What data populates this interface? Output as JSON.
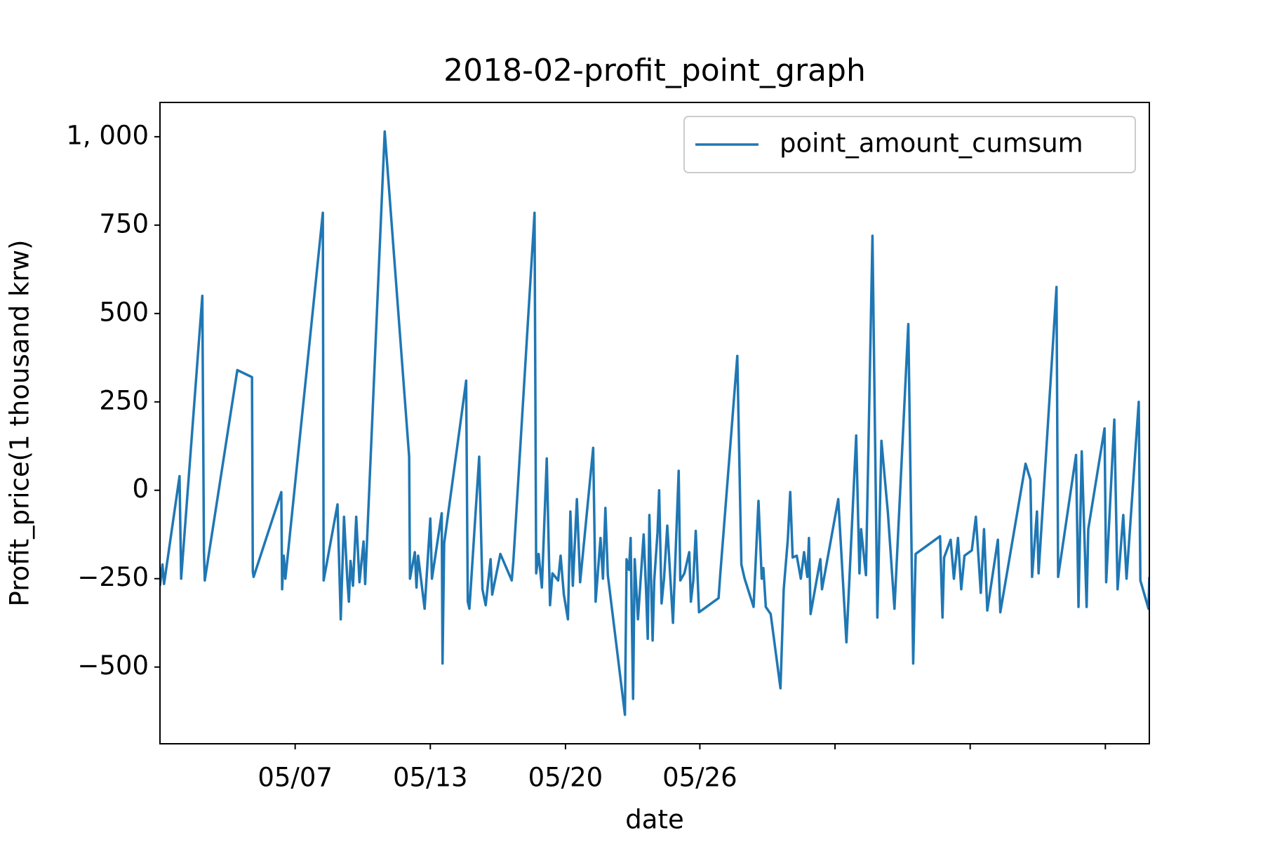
{
  "chart_data": {
    "type": "line",
    "title": "2018-02-profit_point_graph",
    "x_label": "date",
    "y_label": "Profit_price(1 thousand krw)",
    "x": [
      0,
      3,
      5,
      24,
      26,
      52,
      54,
      55,
      95,
      113,
      114,
      115,
      149,
      150,
      152,
      154,
      200,
      201,
      218,
      222,
      226,
      230,
      232,
      234,
      237,
      241,
      245,
      250,
      252,
      276,
      306,
      307,
      313,
      315,
      317,
      325,
      332,
      334,
      346,
      347,
      349,
      376,
      378,
      380,
      392,
      396,
      400,
      406,
      408,
      418,
      432,
      434,
      460,
      462,
      465,
      469,
      475,
      479,
      482,
      489,
      492,
      496,
      501,
      504,
      507,
      512,
      516,
      532,
      535,
      541,
      544,
      547,
      550,
      571,
      573,
      576,
      578,
      581,
      583,
      587,
      594,
      597,
      599,
      601,
      605,
      607,
      611,
      613,
      616,
      619,
      623,
      630,
      637,
      639,
      644,
      650,
      652,
      655,
      658,
      662,
      686,
      688,
      709,
      714,
      718,
      729,
      735,
      739,
      741,
      744,
      750,
      762,
      766,
      771,
      774,
      777,
      782,
      787,
      791,
      795,
      797,
      799,
      811,
      813,
      833,
      843,
      855,
      859,
      861,
      867,
      875,
      881,
      886,
      894,
      902,
      919,
      925,
      928,
      958,
      961,
      963,
      971,
      975,
      980,
      984,
      988,
      997,
      1002,
      1008,
      1012,
      1016,
      1029,
      1032,
      1063,
      1069,
      1071,
      1077,
      1079,
      1101,
      1103,
      1125,
      1128,
      1132,
      1138,
      1140,
      1160,
      1162,
      1172,
      1176,
      1183,
      1187,
      1202,
      1204,
      1214,
      1215
    ],
    "series": [
      {
        "name": "point_amount_cumsum",
        "color": "#1f77b4",
        "values": [
          -270,
          -210,
          -265,
          40,
          -250,
          550,
          -175,
          -255,
          340,
          320,
          -230,
          -245,
          -5,
          -280,
          -185,
          -250,
          785,
          -255,
          -40,
          -365,
          -75,
          -250,
          -315,
          -200,
          -270,
          -75,
          -260,
          -145,
          -265,
          1015,
          95,
          -250,
          -175,
          -275,
          -185,
          -335,
          -80,
          -250,
          -65,
          -490,
          -150,
          310,
          -315,
          -335,
          95,
          -280,
          -325,
          -195,
          -295,
          -180,
          -255,
          -200,
          785,
          -235,
          -180,
          -275,
          90,
          -325,
          -235,
          -255,
          -185,
          -295,
          -365,
          -60,
          -270,
          -25,
          -260,
          120,
          -315,
          -135,
          -250,
          -50,
          -240,
          -635,
          -195,
          -225,
          -135,
          -590,
          -195,
          -365,
          -125,
          -285,
          -420,
          -70,
          -425,
          -255,
          -120,
          0,
          -320,
          -250,
          -100,
          -375,
          55,
          -255,
          -235,
          -175,
          -315,
          -255,
          -115,
          -345,
          -305,
          -240,
          380,
          -210,
          -250,
          -330,
          -30,
          -250,
          -220,
          -330,
          -350,
          -560,
          -280,
          -140,
          -5,
          -190,
          -185,
          -250,
          -175,
          -245,
          -135,
          -350,
          -195,
          -280,
          -25,
          -430,
          155,
          -235,
          -110,
          -240,
          720,
          -360,
          140,
          -65,
          -335,
          470,
          -490,
          -180,
          -130,
          -360,
          -190,
          -140,
          -250,
          -135,
          -280,
          -185,
          -170,
          -75,
          -290,
          -110,
          -340,
          -140,
          -345,
          75,
          30,
          -245,
          -60,
          -235,
          575,
          -245,
          100,
          -330,
          110,
          -330,
          -110,
          175,
          -260,
          200,
          -280,
          -70,
          -250,
          250,
          -255,
          -335,
          -245
        ]
      }
    ],
    "xlim": [
      0,
      1215
    ],
    "xticks": [
      {
        "value": 166,
        "label": "05/07"
      },
      {
        "value": 332,
        "label": "05/13"
      },
      {
        "value": 498,
        "label": "05/20"
      },
      {
        "value": 663,
        "label": "05/26"
      },
      {
        "value": 829,
        "label": null
      },
      {
        "value": 995,
        "label": null
      },
      {
        "value": 1161,
        "label": null
      }
    ],
    "ylim": [
      -717,
      1097
    ],
    "yticks": [
      {
        "value": -500,
        "label": "−500"
      },
      {
        "value": -250,
        "label": "−250"
      },
      0,
      250,
      500,
      750,
      {
        "value": 1000,
        "label": "1, 000"
      }
    ],
    "legend": "upper right"
  }
}
